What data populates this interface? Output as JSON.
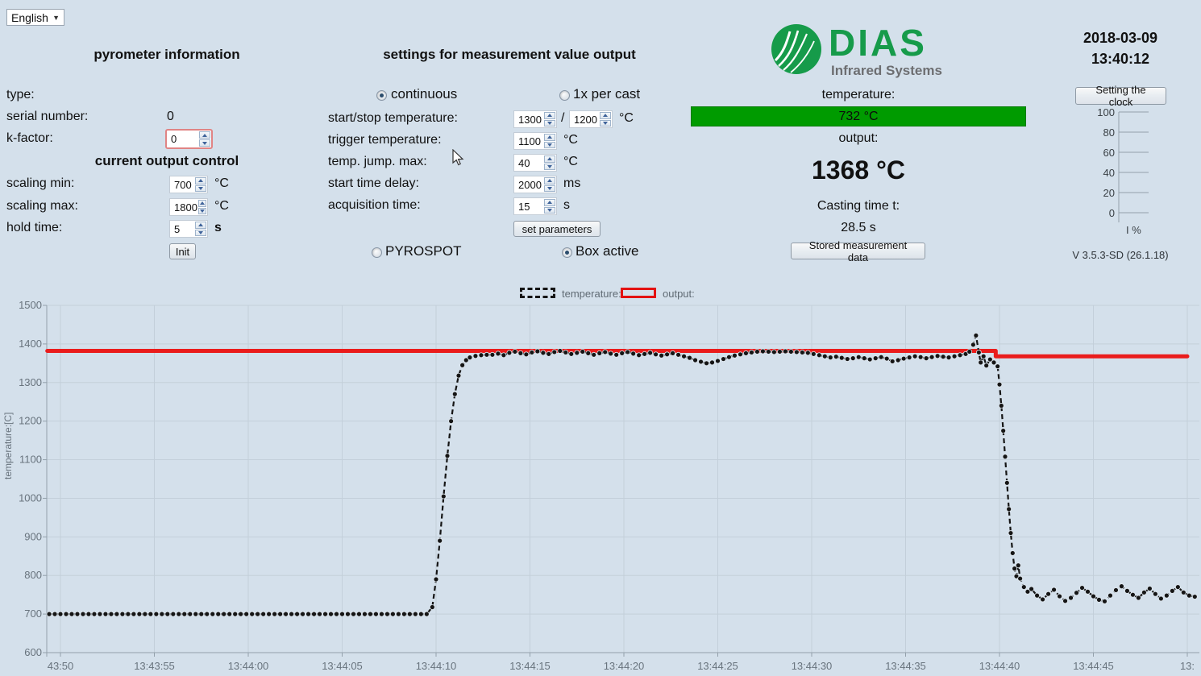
{
  "language": {
    "value": "English"
  },
  "pyro": {
    "title": "pyrometer information",
    "type_label": "type:",
    "serial_label": "serial number:",
    "serial_value": "0",
    "kfactor_label": "k-factor:",
    "kfactor_value": "0"
  },
  "out_ctrl": {
    "title": "current output control",
    "scaling_min_label": "scaling min:",
    "scaling_min_value": "700",
    "scaling_min_unit": "°C",
    "scaling_max_label": "scaling max:",
    "scaling_max_value": "1800",
    "scaling_max_unit": "°C",
    "hold_label": "hold time:",
    "hold_value": "5",
    "hold_unit": "s",
    "init_button": "Init"
  },
  "settings": {
    "title": "settings for measurement value output",
    "continuous_label": "continuous",
    "once_label": "1x per cast",
    "startstop_label": "start/stop temperature:",
    "startstop_v1": "1300",
    "startstop_sep": "/",
    "startstop_v2": "1200",
    "startstop_unit": "°C",
    "trigger_label": "trigger temperature:",
    "trigger_value": "1100",
    "trigger_unit": "°C",
    "jump_label": "temp. jump. max:",
    "jump_value": "40",
    "jump_unit": "°C",
    "delay_label": "start time delay:",
    "delay_value": "2000",
    "delay_unit": "ms",
    "acq_label": "acquisition time:",
    "acq_value": "15",
    "acq_unit": "s",
    "set_params_button": "set parameters",
    "pyrospot_label": "PYROSPOT",
    "box_active_label": "Box active"
  },
  "measurement": {
    "temperature_label": "temperature:",
    "temperature_value": "732 °C",
    "output_label": "output:",
    "output_value": "1368 °C",
    "casting_label": "Casting time t:",
    "casting_value": "28.5 s",
    "stored_button": "Stored measurement data"
  },
  "logo": {
    "name": "DIAS",
    "subtitle": "Infrared Systems",
    "green": "#169b4a",
    "gray": "#6d6e71"
  },
  "clock": {
    "date": "2018-03-09",
    "time": "13:40:12",
    "button": "Setting the clock"
  },
  "meter": {
    "ticks": [
      "100",
      "80",
      "60",
      "40",
      "20",
      "0"
    ],
    "unit": "I %"
  },
  "version": "V 3.5.3-SD (26.1.18)",
  "legend": {
    "temperature": "temperature:",
    "output": "output:"
  },
  "colors": {
    "background": "#d4e0eb",
    "grid": "#c3cfda",
    "axis": "#93a0ab",
    "temperature_series": "#151515",
    "output_series": "#ea1c1c",
    "value_bar_green": "#009b00",
    "highlight_border_red": "#e08484"
  },
  "chart_data": {
    "type": "line",
    "title": "",
    "xlabel": "",
    "ylabel": "temperature:[C]",
    "ylim": [
      600,
      1500
    ],
    "y_ticks": [
      600,
      700,
      800,
      900,
      1000,
      1100,
      1200,
      1300,
      1400,
      1500
    ],
    "x_unit": "seconds after 13:43:00",
    "x_ticks": [
      {
        "t": 50,
        "label": "43:50"
      },
      {
        "t": 55,
        "label": "13:43:55"
      },
      {
        "t": 60,
        "label": "13:44:00"
      },
      {
        "t": 65,
        "label": "13:44:05"
      },
      {
        "t": 70,
        "label": "13:44:10"
      },
      {
        "t": 75,
        "label": "13:44:15"
      },
      {
        "t": 80,
        "label": "13:44:20"
      },
      {
        "t": 85,
        "label": "13:44:25"
      },
      {
        "t": 90,
        "label": "13:44:30"
      },
      {
        "t": 95,
        "label": "13:44:35"
      },
      {
        "t": 100,
        "label": "13:44:40"
      },
      {
        "t": 105,
        "label": "13:44:45"
      },
      {
        "t": 110,
        "label": "13:"
      }
    ],
    "legend_position": "top",
    "grid": true,
    "series": [
      {
        "name": "output",
        "style": "solid",
        "color": "#ea1c1c",
        "width": 5,
        "points": [
          [
            49.3,
            1382
          ],
          [
            99.8,
            1382
          ],
          [
            99.8,
            1368
          ],
          [
            110,
            1368
          ]
        ]
      },
      {
        "name": "temperature",
        "style": "dashed_markers",
        "color": "#151515",
        "points": [
          [
            49.4,
            700
          ],
          [
            49.7,
            700
          ],
          [
            50,
            700
          ],
          [
            50.3,
            700
          ],
          [
            50.6,
            700
          ],
          [
            50.9,
            700
          ],
          [
            51.2,
            700
          ],
          [
            51.5,
            700
          ],
          [
            51.8,
            700
          ],
          [
            52.1,
            700
          ],
          [
            52.4,
            700
          ],
          [
            52.7,
            700
          ],
          [
            53,
            700
          ],
          [
            53.3,
            700
          ],
          [
            53.6,
            700
          ],
          [
            53.9,
            700
          ],
          [
            54.2,
            700
          ],
          [
            54.5,
            700
          ],
          [
            54.8,
            700
          ],
          [
            55.1,
            700
          ],
          [
            55.4,
            700
          ],
          [
            55.7,
            700
          ],
          [
            56,
            700
          ],
          [
            56.3,
            700
          ],
          [
            56.6,
            700
          ],
          [
            56.9,
            700
          ],
          [
            57.2,
            700
          ],
          [
            57.5,
            700
          ],
          [
            57.8,
            700
          ],
          [
            58.1,
            700
          ],
          [
            58.4,
            700
          ],
          [
            58.7,
            700
          ],
          [
            59,
            700
          ],
          [
            59.3,
            700
          ],
          [
            59.6,
            700
          ],
          [
            59.9,
            700
          ],
          [
            60.2,
            700
          ],
          [
            60.5,
            700
          ],
          [
            60.8,
            700
          ],
          [
            61.1,
            700
          ],
          [
            61.4,
            700
          ],
          [
            61.7,
            700
          ],
          [
            62,
            700
          ],
          [
            62.3,
            700
          ],
          [
            62.6,
            700
          ],
          [
            62.9,
            700
          ],
          [
            63.2,
            700
          ],
          [
            63.5,
            700
          ],
          [
            63.8,
            700
          ],
          [
            64.1,
            700
          ],
          [
            64.4,
            700
          ],
          [
            64.7,
            700
          ],
          [
            65,
            700
          ],
          [
            65.3,
            700
          ],
          [
            65.6,
            700
          ],
          [
            65.9,
            700
          ],
          [
            66.2,
            700
          ],
          [
            66.5,
            700
          ],
          [
            66.8,
            700
          ],
          [
            67.1,
            700
          ],
          [
            67.4,
            700
          ],
          [
            67.7,
            700
          ],
          [
            68,
            700
          ],
          [
            68.3,
            700
          ],
          [
            68.6,
            700
          ],
          [
            68.9,
            700
          ],
          [
            69.2,
            700
          ],
          [
            69.5,
            700
          ],
          [
            69.8,
            718
          ],
          [
            70,
            790
          ],
          [
            70.2,
            890
          ],
          [
            70.4,
            1005
          ],
          [
            70.6,
            1110
          ],
          [
            70.8,
            1200
          ],
          [
            71,
            1270
          ],
          [
            71.2,
            1318
          ],
          [
            71.4,
            1345
          ],
          [
            71.6,
            1358
          ],
          [
            71.8,
            1365
          ],
          [
            72.1,
            1369
          ],
          [
            72.4,
            1371
          ],
          [
            72.7,
            1372
          ],
          [
            73,
            1372
          ],
          [
            73.3,
            1375
          ],
          [
            73.6,
            1371
          ],
          [
            73.9,
            1377
          ],
          [
            74.2,
            1380
          ],
          [
            74.5,
            1376
          ],
          [
            74.8,
            1373
          ],
          [
            75.1,
            1378
          ],
          [
            75.4,
            1381
          ],
          [
            75.7,
            1377
          ],
          [
            76,
            1374
          ],
          [
            76.3,
            1379
          ],
          [
            76.6,
            1382
          ],
          [
            76.9,
            1378
          ],
          [
            77.2,
            1374
          ],
          [
            77.5,
            1377
          ],
          [
            77.8,
            1380
          ],
          [
            78.1,
            1376
          ],
          [
            78.4,
            1372
          ],
          [
            78.7,
            1376
          ],
          [
            79,
            1379
          ],
          [
            79.3,
            1375
          ],
          [
            79.6,
            1372
          ],
          [
            79.9,
            1376
          ],
          [
            80.2,
            1379
          ],
          [
            80.5,
            1375
          ],
          [
            80.8,
            1371
          ],
          [
            81.1,
            1374
          ],
          [
            81.4,
            1377
          ],
          [
            81.7,
            1373
          ],
          [
            82,
            1370
          ],
          [
            82.3,
            1373
          ],
          [
            82.6,
            1376
          ],
          [
            82.9,
            1372
          ],
          [
            83.2,
            1368
          ],
          [
            83.5,
            1364
          ],
          [
            83.8,
            1358
          ],
          [
            84.1,
            1354
          ],
          [
            84.4,
            1350
          ],
          [
            84.7,
            1352
          ],
          [
            85,
            1356
          ],
          [
            85.3,
            1361
          ],
          [
            85.6,
            1366
          ],
          [
            85.9,
            1370
          ],
          [
            86.2,
            1373
          ],
          [
            86.5,
            1376
          ],
          [
            86.8,
            1378
          ],
          [
            87.1,
            1380
          ],
          [
            87.4,
            1381
          ],
          [
            87.7,
            1380
          ],
          [
            88,
            1379
          ],
          [
            88.3,
            1380
          ],
          [
            88.6,
            1381
          ],
          [
            88.9,
            1380
          ],
          [
            89.2,
            1379
          ],
          [
            89.5,
            1378
          ],
          [
            89.8,
            1377
          ],
          [
            90.1,
            1374
          ],
          [
            90.4,
            1371
          ],
          [
            90.7,
            1368
          ],
          [
            91,
            1365
          ],
          [
            91.3,
            1367
          ],
          [
            91.6,
            1364
          ],
          [
            91.9,
            1361
          ],
          [
            92.2,
            1363
          ],
          [
            92.5,
            1366
          ],
          [
            92.8,
            1363
          ],
          [
            93.1,
            1360
          ],
          [
            93.4,
            1363
          ],
          [
            93.7,
            1366
          ],
          [
            94,
            1362
          ],
          [
            94.3,
            1355
          ],
          [
            94.6,
            1358
          ],
          [
            94.9,
            1362
          ],
          [
            95.2,
            1365
          ],
          [
            95.5,
            1368
          ],
          [
            95.8,
            1366
          ],
          [
            96.1,
            1363
          ],
          [
            96.4,
            1366
          ],
          [
            96.7,
            1369
          ],
          [
            97,
            1367
          ],
          [
            97.3,
            1365
          ],
          [
            97.6,
            1368
          ],
          [
            97.9,
            1371
          ],
          [
            98.2,
            1374
          ],
          [
            98.4,
            1380
          ],
          [
            98.6,
            1398
          ],
          [
            98.75,
            1422
          ],
          [
            98.9,
            1378
          ],
          [
            99,
            1352
          ],
          [
            99.15,
            1368
          ],
          [
            99.3,
            1344
          ],
          [
            99.5,
            1360
          ],
          [
            99.7,
            1352
          ],
          [
            99.9,
            1342
          ],
          [
            100,
            1295
          ],
          [
            100.1,
            1240
          ],
          [
            100.2,
            1175
          ],
          [
            100.3,
            1108
          ],
          [
            100.4,
            1040
          ],
          [
            100.5,
            972
          ],
          [
            100.6,
            910
          ],
          [
            100.7,
            858
          ],
          [
            100.8,
            818
          ],
          [
            100.9,
            798
          ],
          [
            101,
            826
          ],
          [
            101.1,
            792
          ],
          [
            101.3,
            770
          ],
          [
            101.5,
            758
          ],
          [
            101.7,
            765
          ],
          [
            102,
            748
          ],
          [
            102.3,
            738
          ],
          [
            102.6,
            752
          ],
          [
            102.9,
            763
          ],
          [
            103.2,
            746
          ],
          [
            103.5,
            734
          ],
          [
            103.8,
            742
          ],
          [
            104.1,
            755
          ],
          [
            104.4,
            768
          ],
          [
            104.7,
            758
          ],
          [
            105,
            746
          ],
          [
            105.3,
            737
          ],
          [
            105.6,
            733
          ],
          [
            105.9,
            748
          ],
          [
            106.2,
            762
          ],
          [
            106.5,
            772
          ],
          [
            106.8,
            760
          ],
          [
            107.1,
            750
          ],
          [
            107.4,
            742
          ],
          [
            107.7,
            756
          ],
          [
            108,
            766
          ],
          [
            108.3,
            752
          ],
          [
            108.6,
            740
          ],
          [
            108.9,
            748
          ],
          [
            109.2,
            760
          ],
          [
            109.5,
            770
          ],
          [
            109.8,
            756
          ],
          [
            110.1,
            748
          ],
          [
            110.4,
            745
          ]
        ]
      }
    ]
  }
}
